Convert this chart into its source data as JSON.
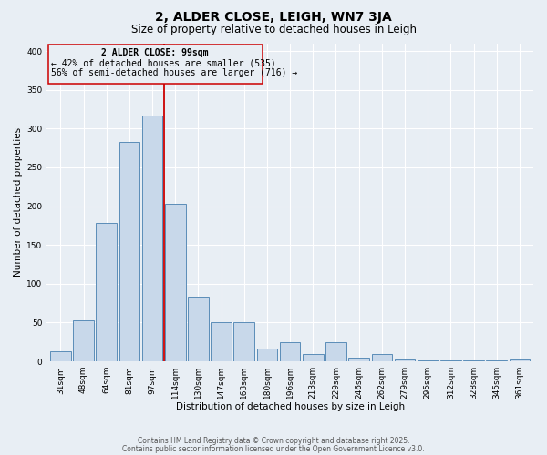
{
  "title": "2, ALDER CLOSE, LEIGH, WN7 3JA",
  "subtitle": "Size of property relative to detached houses in Leigh",
  "xlabel": "Distribution of detached houses by size in Leigh",
  "ylabel": "Number of detached properties",
  "categories": [
    "31sqm",
    "48sqm",
    "64sqm",
    "81sqm",
    "97sqm",
    "114sqm",
    "130sqm",
    "147sqm",
    "163sqm",
    "180sqm",
    "196sqm",
    "213sqm",
    "229sqm",
    "246sqm",
    "262sqm",
    "279sqm",
    "295sqm",
    "312sqm",
    "328sqm",
    "345sqm",
    "361sqm"
  ],
  "bar_heights": [
    13,
    53,
    178,
    283,
    317,
    203,
    83,
    51,
    51,
    16,
    25,
    9,
    25,
    5,
    9,
    3,
    1,
    1,
    1,
    1,
    2
  ],
  "bar_color": "#c8d8ea",
  "bar_edge_color": "#5b8db8",
  "background_color": "#e8eef4",
  "grid_color": "#ffffff",
  "marker_line_color": "#cc0000",
  "marker_label": "2 ALDER CLOSE: 99sqm",
  "annotation_line1": "← 42% of detached houses are smaller (535)",
  "annotation_line2": "56% of semi-detached houses are larger (716) →",
  "box_edge_color": "#cc0000",
  "ylim": [
    0,
    410
  ],
  "yticks": [
    0,
    50,
    100,
    150,
    200,
    250,
    300,
    350,
    400
  ],
  "footer1": "Contains HM Land Registry data © Crown copyright and database right 2025.",
  "footer2": "Contains public sector information licensed under the Open Government Licence v3.0.",
  "title_fontsize": 10,
  "subtitle_fontsize": 8.5,
  "axis_label_fontsize": 7.5,
  "tick_fontsize": 6.5,
  "annotation_fontsize": 7,
  "footer_fontsize": 5.5
}
